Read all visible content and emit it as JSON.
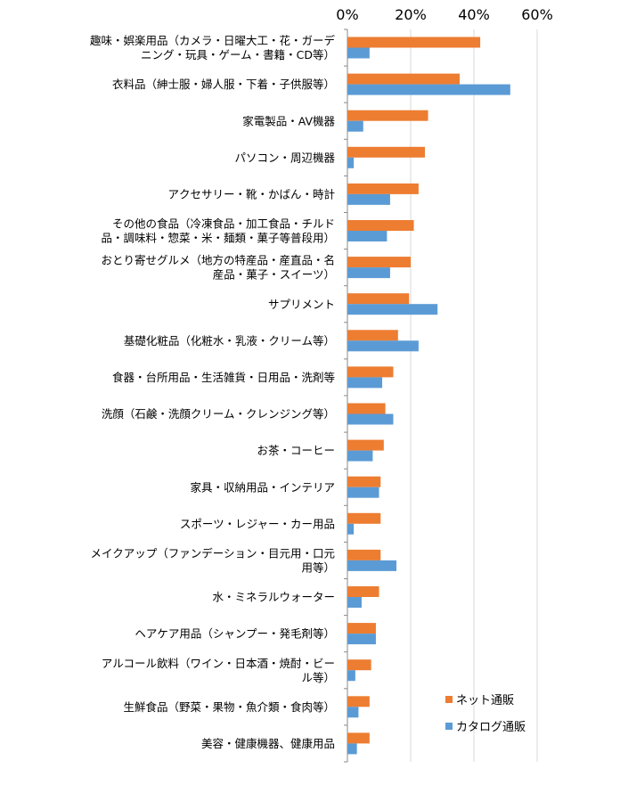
{
  "chart_data": {
    "type": "bar",
    "orientation": "horizontal",
    "xlim": [
      0,
      60
    ],
    "x_ticks": [
      "0%",
      "20%",
      "40%",
      "60%"
    ],
    "grid": true,
    "legend_position": "bottom-right",
    "colors": {
      "net": "#ED7D31",
      "catalog": "#5B9BD5"
    },
    "categories": [
      [
        "趣味・娯楽用品（カメラ・日曜大工・花・ガーデ",
        "ニング・玩具・ゲーム・書籍・CD等）"
      ],
      [
        "衣料品（紳士服・婦人服・下着・子供服等）"
      ],
      [
        "家電製品・AV機器"
      ],
      [
        "パソコン・周辺機器"
      ],
      [
        "アクセサリー・靴・かばん・時計"
      ],
      [
        "その他の食品（冷凍食品・加工食品・チルド",
        "品・調味料・惣菜・米・麺類・菓子等普段用）"
      ],
      [
        "おとり寄せグルメ（地方の特産品・産直品・名",
        "産品・菓子・スイーツ）"
      ],
      [
        "サプリメント"
      ],
      [
        "基礎化粧品（化粧水・乳液・クリーム等）"
      ],
      [
        "食器・台所用品・生活雑貨・日用品・洗剤等"
      ],
      [
        "洗顔（石鹸・洗顔クリーム・クレンジング等）"
      ],
      [
        "お茶・コーヒー"
      ],
      [
        "家具・収納用品・インテリア"
      ],
      [
        "スポーツ・レジャー・カー用品"
      ],
      [
        "メイクアップ（ファンデーション・目元用・口元",
        "用等）"
      ],
      [
        "水・ミネラルウォーター"
      ],
      [
        "ヘアケア用品（シャンプー・発毛剤等）"
      ],
      [
        "アルコール飲料（ワイン・日本酒・焼酎・ビー",
        "ル等）"
      ],
      [
        "生鮮食品（野菜・果物・魚介類・食肉等）"
      ],
      [
        "美容・健康機器、健康用品"
      ]
    ],
    "series": [
      {
        "name": "ネット通販",
        "values": [
          42,
          35.5,
          25.5,
          24.5,
          22.5,
          21,
          20,
          19.5,
          16,
          14.5,
          12,
          11.5,
          10.5,
          10.5,
          10.5,
          10,
          9,
          7.5,
          7,
          7
        ]
      },
      {
        "name": "カタログ通販",
        "values": [
          7,
          51.5,
          5,
          2,
          13.5,
          12.5,
          13.5,
          28.5,
          22.5,
          11,
          14.5,
          8,
          10,
          2,
          15.5,
          4.5,
          9,
          2.5,
          3.5,
          3
        ]
      }
    ]
  }
}
